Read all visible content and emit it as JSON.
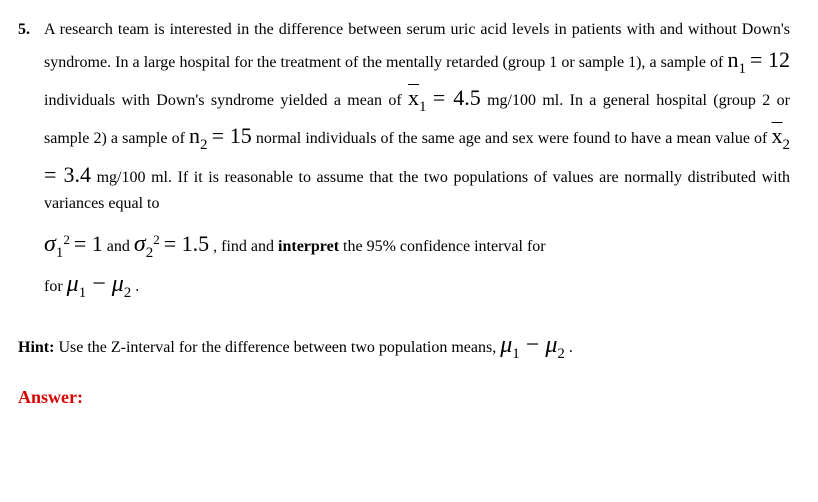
{
  "problem": {
    "number": "5.",
    "line1a": "A research team is interested in the difference between serum uric acid levels in patients with and without Down's syndrome.  In a large hospital for the treatment of the mentally retarded (group 1 or sample 1), a sample of ",
    "n1_sym": "n",
    "n1_sub": "1",
    "eq": " = ",
    "n1_val": "12",
    "line1b": " individuals with Down's syndrome yielded a mean of ",
    "x1_sym": "x",
    "x1_sub": "1",
    "x1_val": "4.5",
    "unit": " mg/100 ml.",
    "line1c": "  In a general hospital (group 2 or sample 2) a sample of ",
    "n2_sym": "n",
    "n2_sub": "2",
    "n2_val": "15",
    "line1d": " normal individuals of the same age and sex were found to have a mean value of  ",
    "x2_sym": "x",
    "x2_sub": "2",
    "x2_val": "3.4",
    "line1e": "  If it is reasonable to assume that the two populations of values are normally distributed with variances equal to",
    "sigma": "σ",
    "sig1_sub": "1",
    "sq": "2",
    "sig1_val": "1",
    "and": " and ",
    "sig2_sub": "2",
    "sig2_val": "1.5",
    "line2a": ", find and ",
    "interpret": "interpret",
    "line2b": " the 95% confidence interval for ",
    "mu": "μ",
    "mu1_sub": "1",
    "minus": " − ",
    "mu2_sub": "2",
    "period": " ."
  },
  "hint": {
    "label": "Hint:",
    "text": " Use the Z-interval for the difference between two population means, "
  },
  "answer": "Answer:"
}
